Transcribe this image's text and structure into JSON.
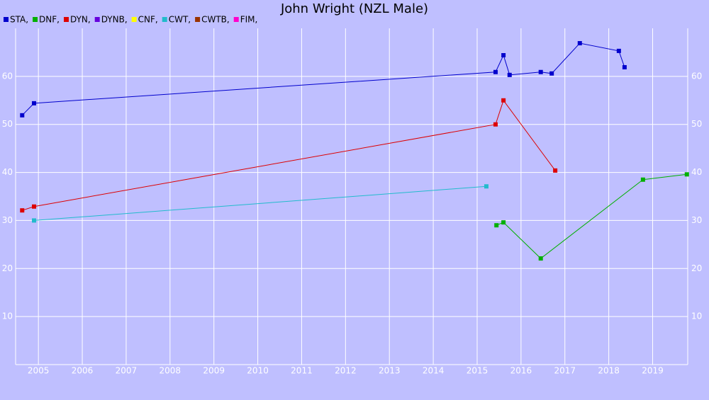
{
  "chart_data": {
    "type": "line",
    "title": "John Wright (NZL Male)",
    "xlim": [
      2004.48,
      2019.8
    ],
    "xticks": [
      2005,
      2006,
      2007,
      2008,
      2009,
      2010,
      2011,
      2012,
      2013,
      2014,
      2015,
      2016,
      2017,
      2018,
      2019
    ],
    "ylim": [
      0,
      70
    ],
    "yticks": [
      10,
      20,
      30,
      40,
      50,
      60
    ],
    "grid": true,
    "series": [
      {
        "name": "STA,",
        "color": "#0000cc",
        "x": [
          2004.63,
          2004.9,
          2015.42,
          2015.6,
          2015.74,
          2016.45,
          2016.7,
          2017.34,
          2018.23,
          2018.36
        ],
        "values": [
          51.9,
          54.4,
          60.9,
          64.4,
          60.3,
          60.9,
          60.6,
          66.9,
          65.3,
          61.9
        ]
      },
      {
        "name": "DNF,",
        "color": "#00b000",
        "x": [
          2015.44,
          2015.6,
          2016.45,
          2018.78,
          2019.78
        ],
        "values": [
          29.0,
          29.6,
          22.1,
          38.5,
          39.6
        ]
      },
      {
        "name": "DYN,",
        "color": "#dd0000",
        "x": [
          2004.63,
          2004.9,
          2015.42,
          2015.6,
          2016.78
        ],
        "values": [
          32.1,
          32.9,
          50.0,
          55.0,
          40.4
        ]
      },
      {
        "name": "DYNB,",
        "color": "#6600dd",
        "x": [],
        "values": []
      },
      {
        "name": "CNF,",
        "color": "#ffff00",
        "x": [],
        "values": []
      },
      {
        "name": "CWT,",
        "color": "#22bbcc",
        "x": [
          2004.9,
          2015.21
        ],
        "values": [
          30.0,
          37.1
        ]
      },
      {
        "name": "CWTB,",
        "color": "#993300",
        "x": [],
        "values": []
      },
      {
        "name": "FIM,",
        "color": "#ff00cc",
        "x": [],
        "values": []
      }
    ]
  }
}
